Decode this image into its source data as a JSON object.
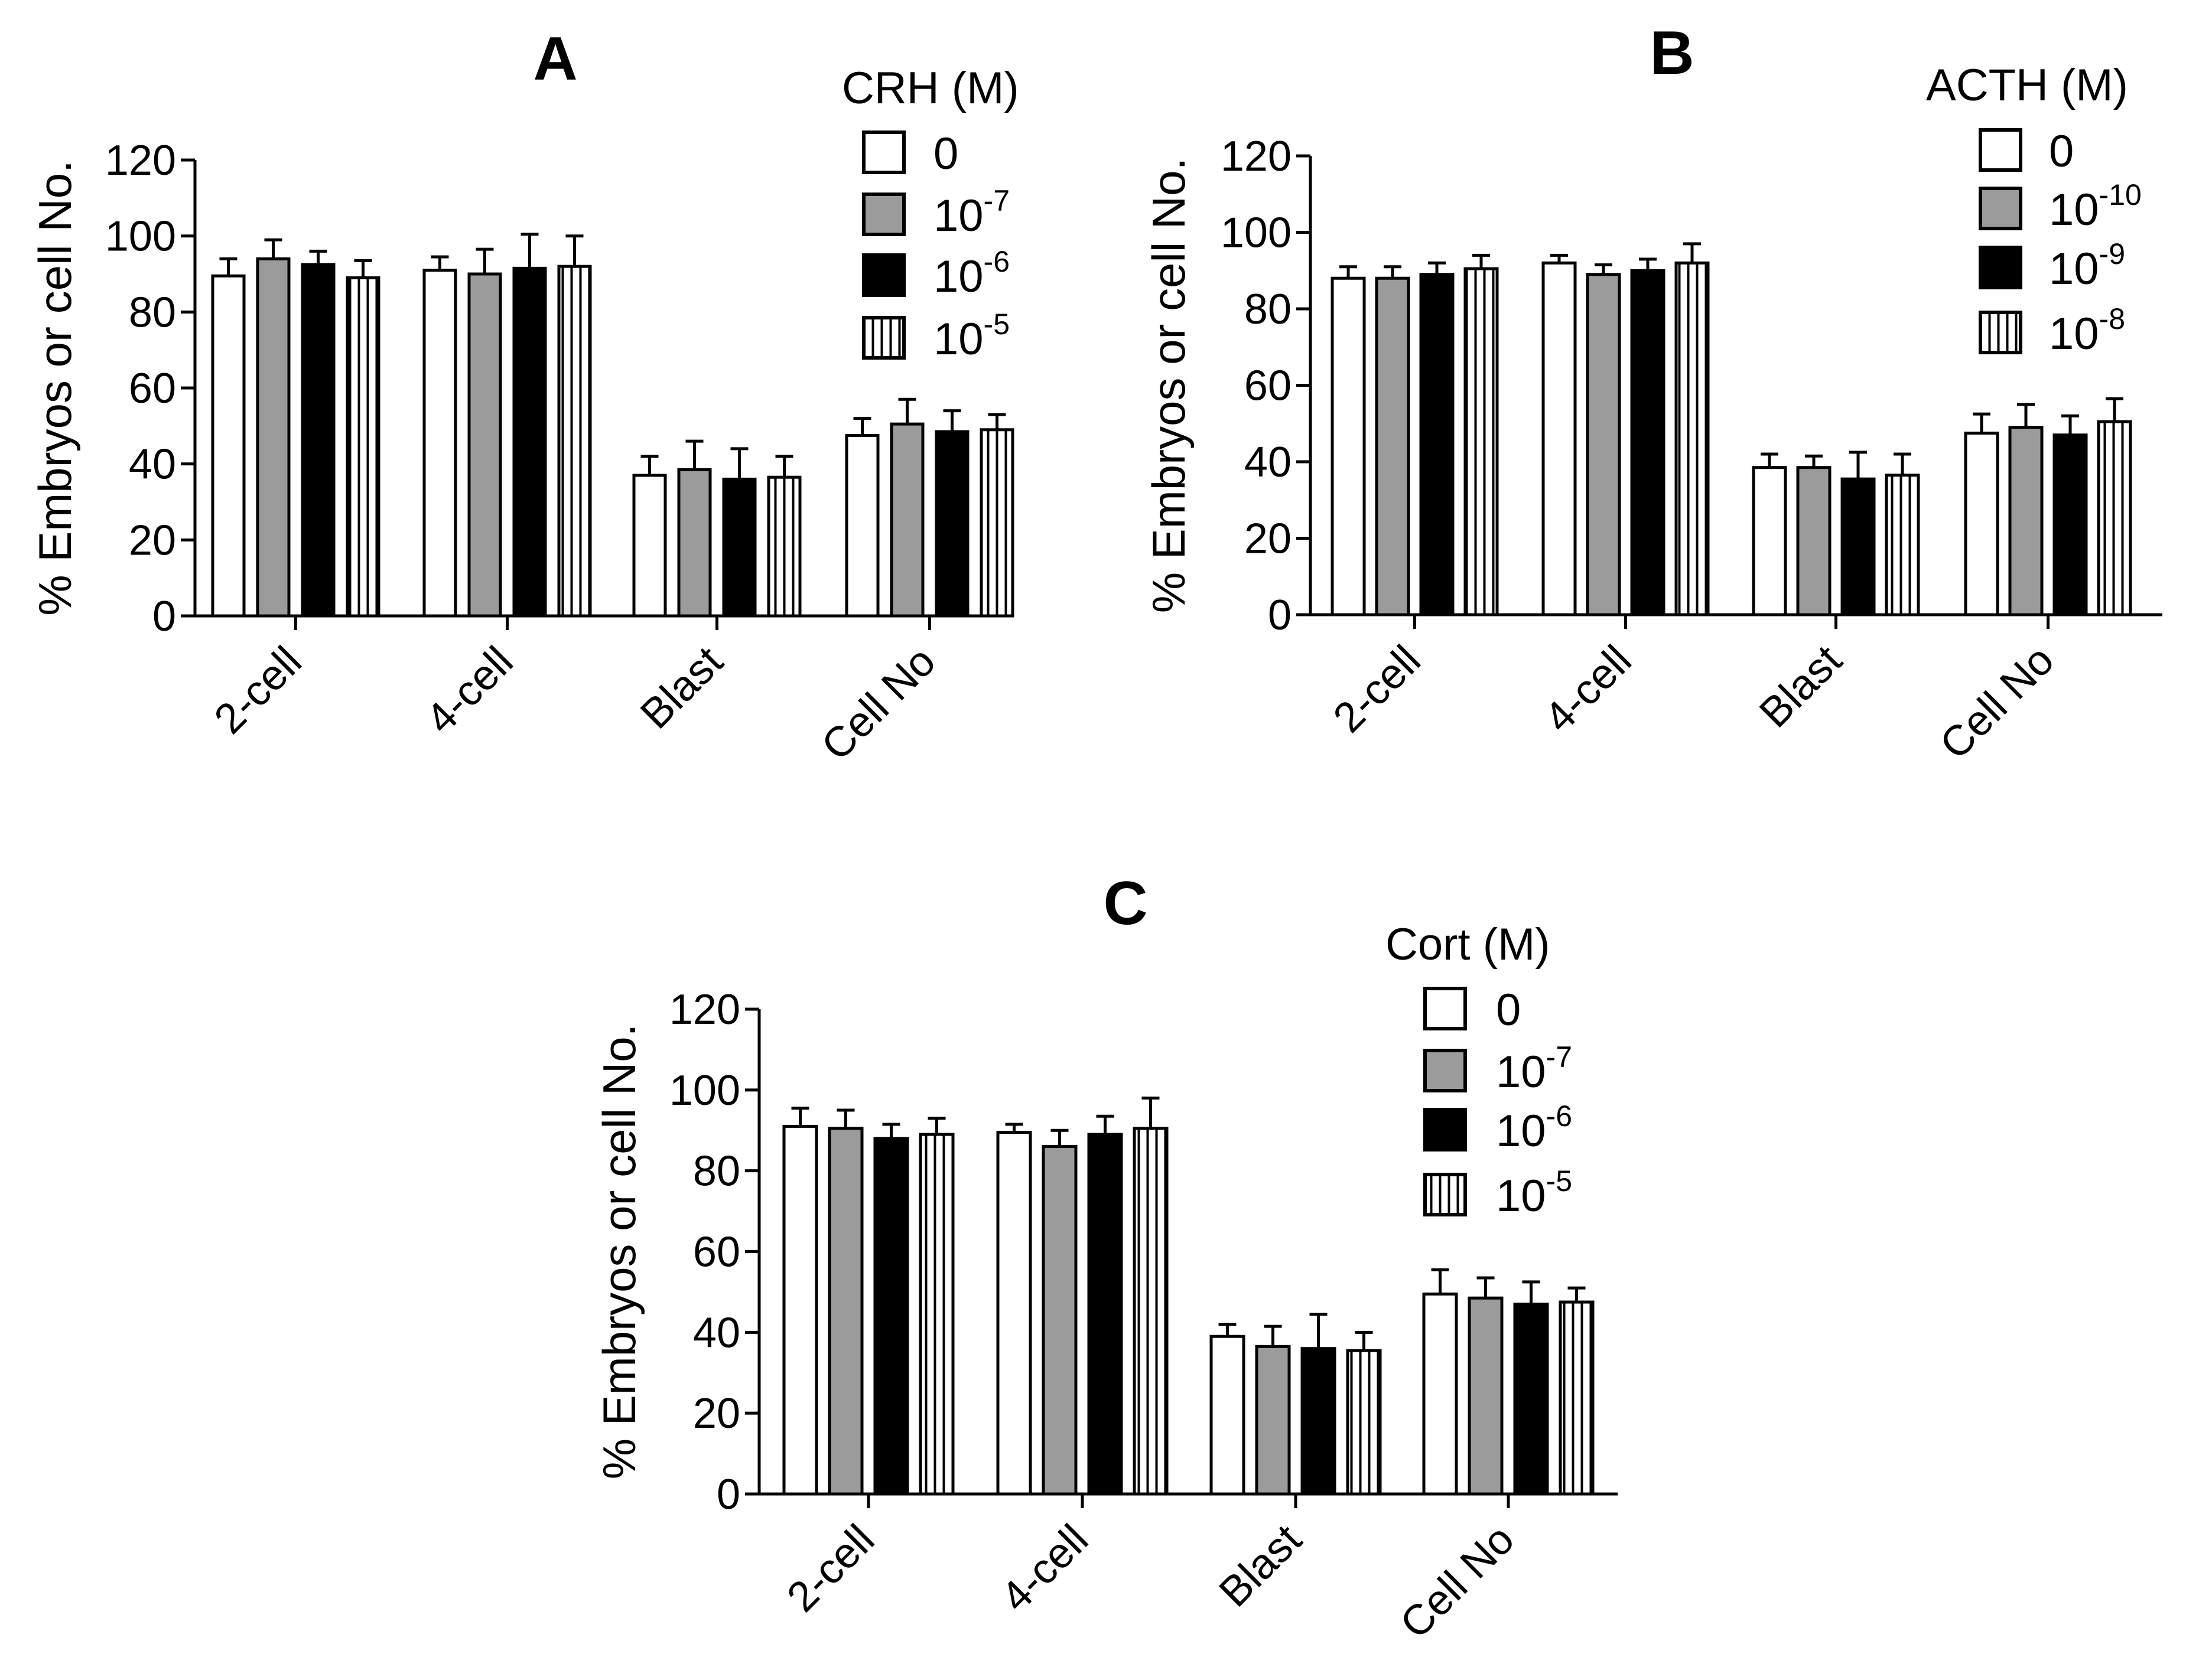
{
  "chart_data": [
    {
      "type": "bar",
      "panel": "A",
      "title": "A",
      "legend_title": "CRH (M)",
      "ylabel": "% Embryos or cell No.",
      "xlabel": "",
      "ylim": [
        0,
        120
      ],
      "yticks": [
        "0",
        "20",
        "40",
        "60",
        "80",
        "100",
        "120"
      ],
      "categories": [
        "2-cell",
        "4-cell",
        "Blast",
        "Cell No"
      ],
      "series": [
        {
          "name": "0",
          "base": "10",
          "exp": "",
          "pattern": "white",
          "values": [
            89.5,
            91,
            37,
            47.5
          ],
          "errors": [
            4.5,
            3.5,
            5,
            4.5
          ]
        },
        {
          "name": "10-7",
          "base": "10",
          "exp": "-7",
          "pattern": "gray",
          "values": [
            94,
            90,
            38.5,
            50.5
          ],
          "errors": [
            5,
            6.5,
            7.5,
            6.5
          ]
        },
        {
          "name": "10-6",
          "base": "10",
          "exp": "-6",
          "pattern": "black",
          "values": [
            92.5,
            91.5,
            36,
            48.5
          ],
          "errors": [
            3.5,
            9,
            8,
            5.5
          ]
        },
        {
          "name": "10-5",
          "base": "10",
          "exp": "-5",
          "pattern": "striped",
          "values": [
            89,
            92,
            36.5,
            49
          ],
          "errors": [
            4.5,
            8,
            5.5,
            4
          ]
        }
      ]
    },
    {
      "type": "bar",
      "panel": "B",
      "title": "B",
      "legend_title": "ACTH (M)",
      "ylabel": "% Embryos or cell No.",
      "xlabel": "",
      "ylim": [
        0,
        120
      ],
      "yticks": [
        "0",
        "20",
        "40",
        "60",
        "80",
        "100",
        "120"
      ],
      "categories": [
        "2-cell",
        "4-cell",
        "Blast",
        "Cell No"
      ],
      "series": [
        {
          "name": "0",
          "base": "10",
          "exp": "",
          "pattern": "white",
          "values": [
            88,
            92,
            38.5,
            47.5
          ],
          "errors": [
            3,
            2,
            3.5,
            5
          ]
        },
        {
          "name": "10-10",
          "base": "10",
          "exp": "-10",
          "pattern": "gray",
          "values": [
            88,
            89,
            38.5,
            49
          ],
          "errors": [
            3,
            2.5,
            3,
            6
          ]
        },
        {
          "name": "10-9",
          "base": "10",
          "exp": "-9",
          "pattern": "black",
          "values": [
            89,
            90,
            35.5,
            47
          ],
          "errors": [
            3,
            3,
            7,
            5
          ]
        },
        {
          "name": "10-8",
          "base": "10",
          "exp": "-8",
          "pattern": "striped",
          "values": [
            90.5,
            92,
            36.5,
            50.5
          ],
          "errors": [
            3.5,
            5,
            5.5,
            6
          ]
        }
      ]
    },
    {
      "type": "bar",
      "panel": "C",
      "title": "C",
      "legend_title": "Cort (M)",
      "ylabel": "% Embryos or cell No.",
      "xlabel": "",
      "ylim": [
        0,
        120
      ],
      "yticks": [
        "0",
        "20",
        "40",
        "60",
        "80",
        "100",
        "120"
      ],
      "categories": [
        "2-cell",
        "4-cell",
        "Blast",
        "Cell No"
      ],
      "series": [
        {
          "name": "0",
          "base": "10",
          "exp": "",
          "pattern": "white",
          "values": [
            91,
            89.5,
            39,
            49.5
          ],
          "errors": [
            4.5,
            2,
            3,
            6
          ]
        },
        {
          "name": "10-7",
          "base": "10",
          "exp": "-7",
          "pattern": "gray",
          "values": [
            90.5,
            86,
            36.5,
            48.5
          ],
          "errors": [
            4.5,
            4,
            5,
            5
          ]
        },
        {
          "name": "10-6",
          "base": "10",
          "exp": "-6",
          "pattern": "black",
          "values": [
            88,
            89,
            36,
            47
          ],
          "errors": [
            3.5,
            4.5,
            8.5,
            5.5
          ]
        },
        {
          "name": "10-5",
          "base": "10",
          "exp": "-5",
          "pattern": "striped",
          "values": [
            89,
            90.5,
            35.5,
            47.5
          ],
          "errors": [
            4,
            7.5,
            4.5,
            3.5
          ]
        }
      ]
    }
  ],
  "colors": {
    "white_fill": "#ffffff",
    "gray_fill": "#9b9b9b",
    "black_fill": "#000000",
    "stroke": "#000000"
  }
}
